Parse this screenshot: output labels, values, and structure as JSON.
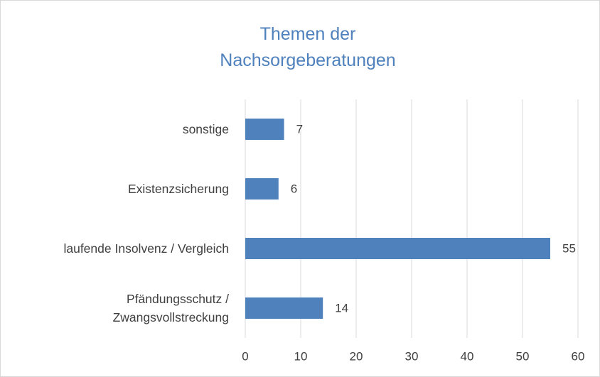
{
  "chart_data": {
    "type": "bar",
    "orientation": "horizontal",
    "title": "Themen der Nachsorgeberatungen",
    "categories": [
      "Pfändungsschutz / Zwangsvollstreckung",
      "laufende Insolvenz / Vergleich",
      "Existenzsicherung",
      "sonstige"
    ],
    "values": [
      14,
      55,
      6,
      7
    ],
    "color": "#4f81bd",
    "xlim": [
      0,
      60
    ],
    "xticks": [
      0,
      10,
      20,
      30,
      40,
      50,
      60
    ],
    "grid": true,
    "data_labels": true
  }
}
